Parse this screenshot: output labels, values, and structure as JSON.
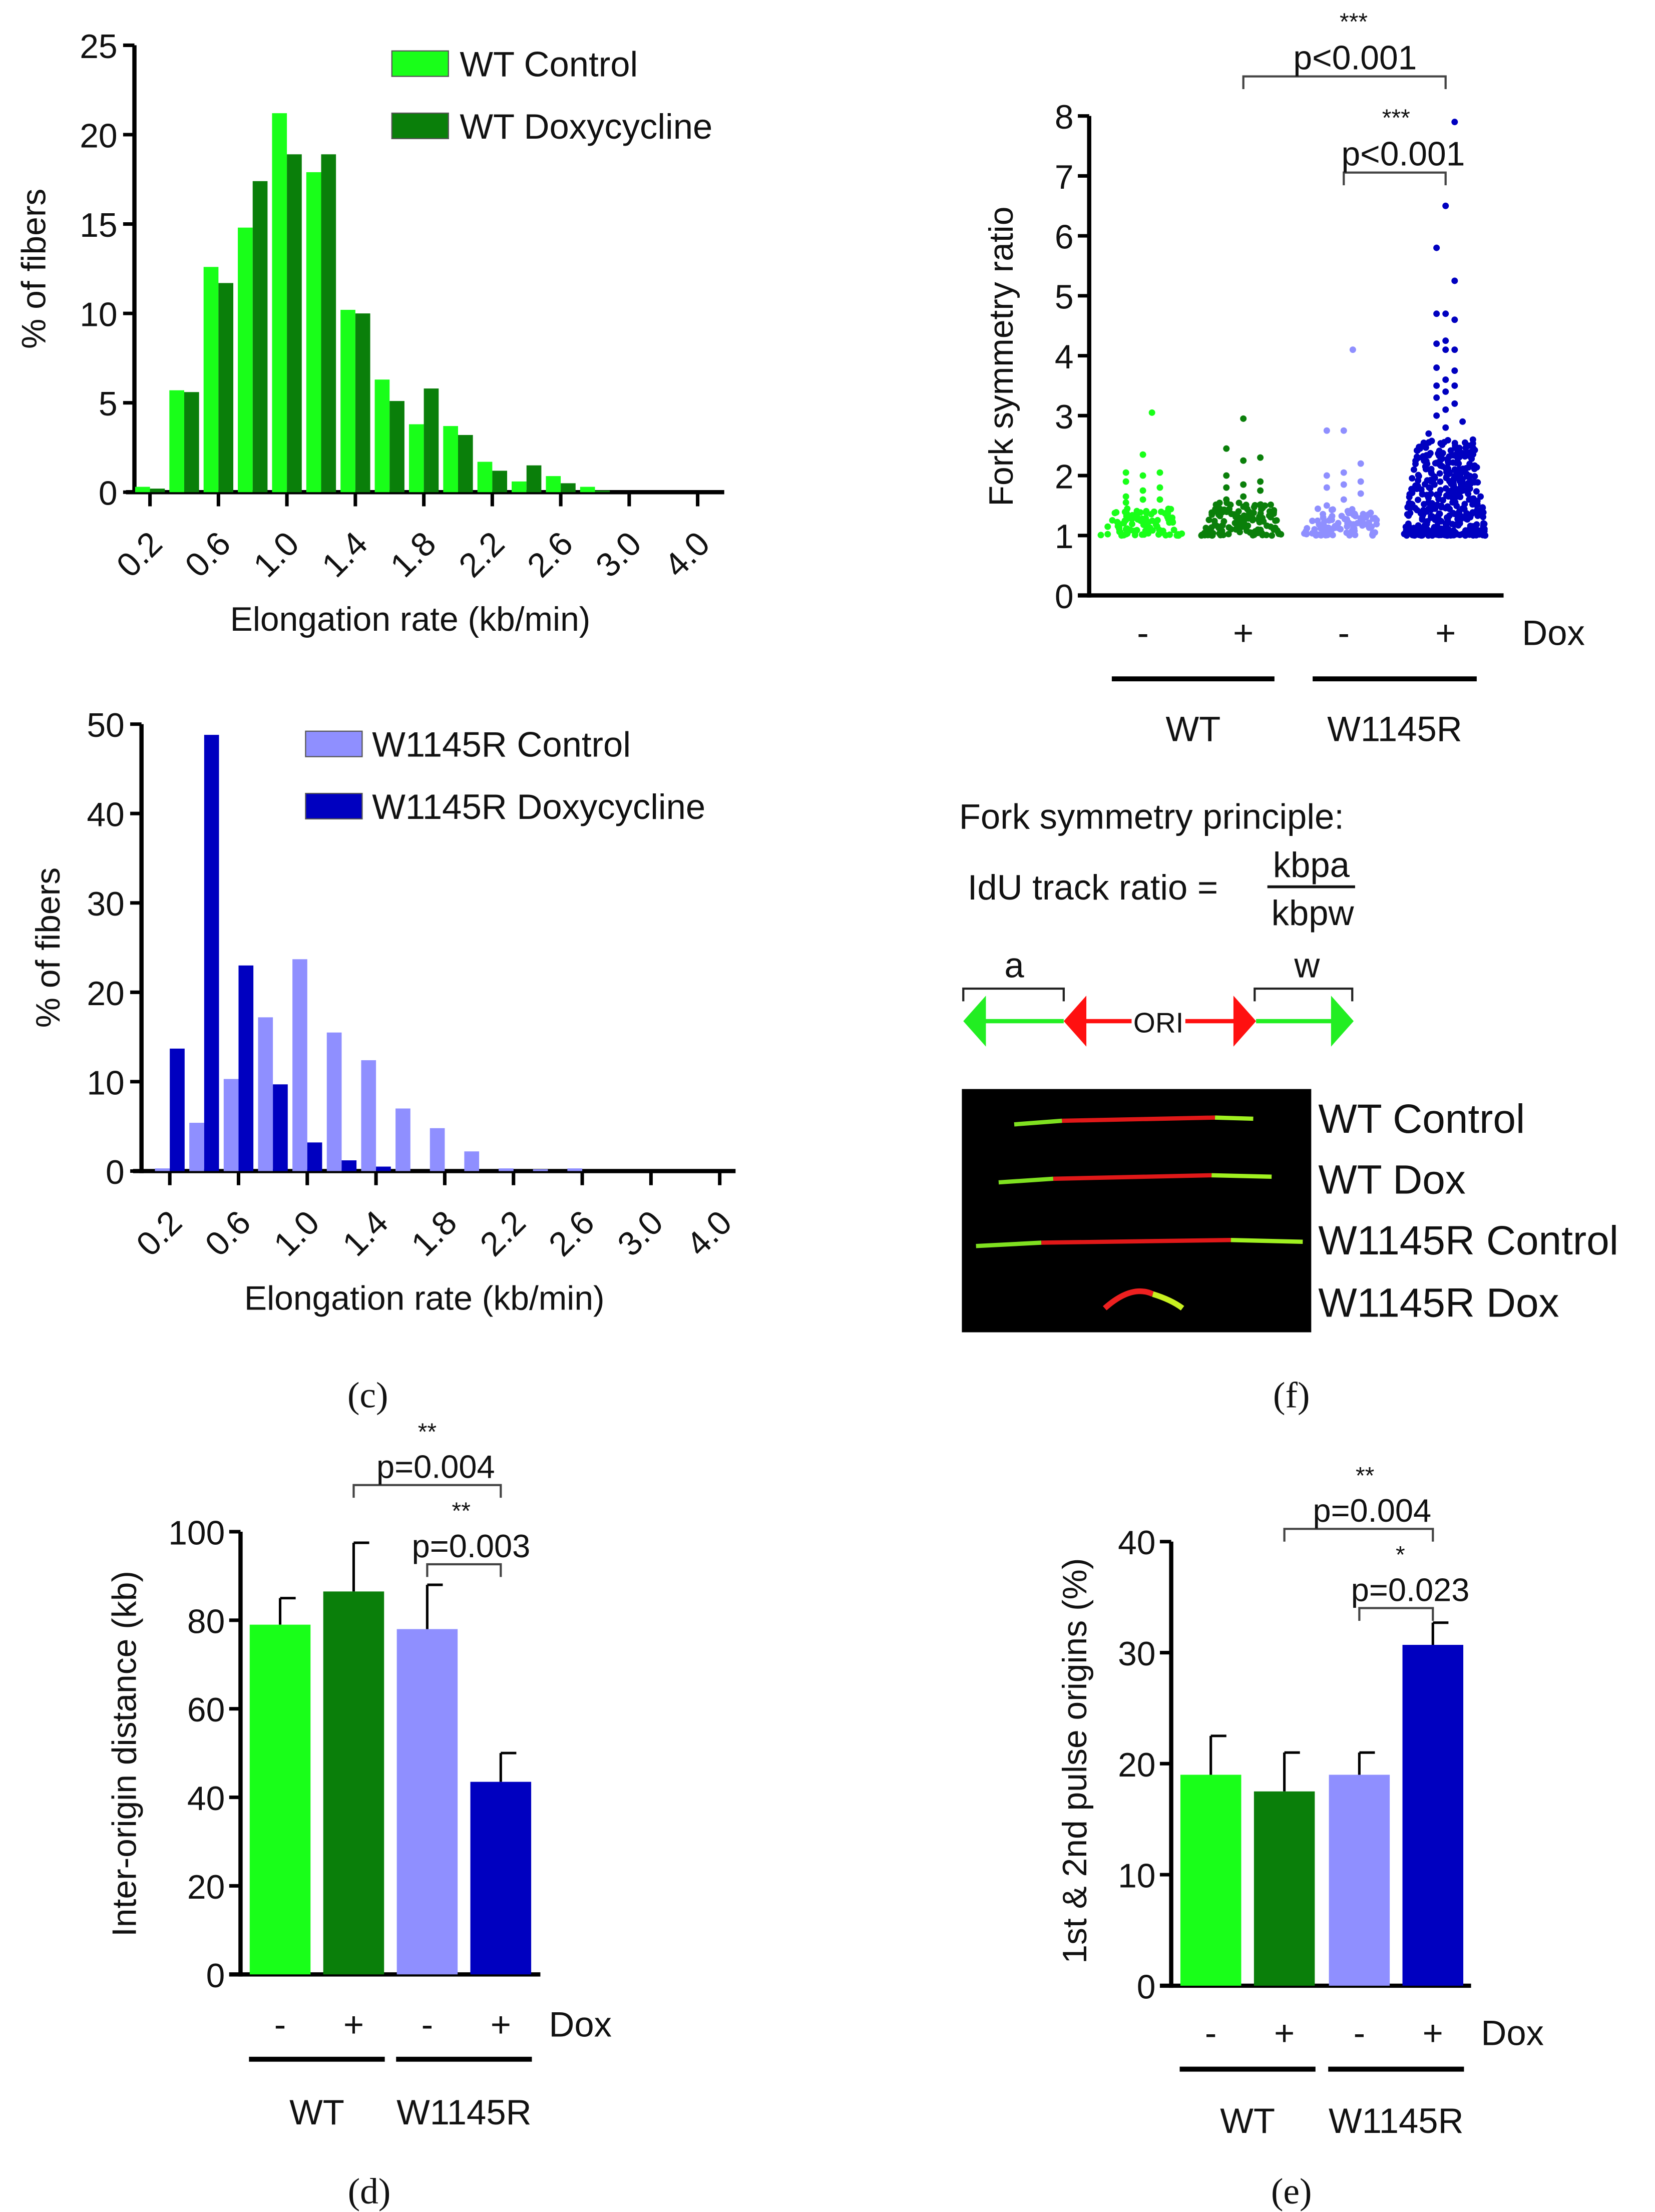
{
  "panels": {
    "c": "(c)",
    "f": "(f)",
    "d": "(d)",
    "e": "(e)"
  },
  "colors": {
    "wt_control": "#19ff19",
    "wt_dox": "#0a7f0a",
    "mut_control": "#8f8fff",
    "mut_dox": "#0000c0"
  },
  "chart_data": [
    {
      "type": "bar",
      "title": "",
      "xlabel": "Elongation rate (kb/min)",
      "ylabel": "% of fibers",
      "ylim": [
        0,
        25
      ],
      "yticks": [
        "0",
        "5",
        "10",
        "15",
        "20",
        "25"
      ],
      "categories": [
        "0.2",
        "0.4",
        "0.6",
        "0.8",
        "1.0",
        "1.2",
        "1.4",
        "1.6",
        "1.8",
        "2.0",
        "2.2",
        "2.4",
        "2.6",
        "2.8",
        "3.0",
        "3.2",
        "4.0"
      ],
      "xtick_labels": [
        "0.2",
        "0.6",
        "1.0",
        "1.4",
        "1.8",
        "2.2",
        "2.6",
        "3.0",
        "4.0"
      ],
      "legend_position": "top-right",
      "series": [
        {
          "name": "WT Control",
          "values": [
            0.3,
            5.7,
            12.6,
            14.8,
            21.2,
            17.9,
            10.2,
            6.3,
            3.8,
            3.7,
            1.7,
            0.6,
            0.9,
            0.3,
            0,
            0,
            0
          ]
        },
        {
          "name": "WT Doxycycline",
          "values": [
            0.2,
            5.6,
            11.7,
            17.4,
            18.9,
            18.9,
            10.0,
            5.1,
            5.8,
            3.2,
            1.2,
            1.5,
            0.5,
            0.1,
            0,
            0,
            0
          ]
        }
      ]
    },
    {
      "type": "bar",
      "title": "",
      "xlabel": "Elongation rate (kb/min)",
      "ylabel": "% of fibers",
      "ylim": [
        0,
        50
      ],
      "yticks": [
        "0",
        "10",
        "20",
        "30",
        "40",
        "50"
      ],
      "categories": [
        "0.2",
        "0.4",
        "0.6",
        "0.8",
        "1.0",
        "1.2",
        "1.4",
        "1.6",
        "1.8",
        "2.0",
        "2.2",
        "2.4",
        "2.6",
        "2.8",
        "3.0",
        "3.2",
        "4.0"
      ],
      "xtick_labels": [
        "0.2",
        "0.6",
        "1.0",
        "1.4",
        "1.8",
        "2.2",
        "2.6",
        "3.0",
        "4.0"
      ],
      "legend_position": "top-right",
      "series": [
        {
          "name": "W1145R Control",
          "values": [
            0.3,
            5.4,
            10.3,
            17.2,
            23.7,
            15.5,
            12.4,
            7.0,
            4.8,
            2.2,
            0.3,
            0.2,
            0.3,
            0,
            0,
            0,
            0
          ]
        },
        {
          "name": "W1145R Doxycycline",
          "values": [
            13.7,
            48.8,
            23.0,
            9.7,
            3.2,
            1.2,
            0.5,
            0,
            0,
            0,
            0,
            0,
            0,
            0,
            0,
            0,
            0
          ]
        }
      ]
    },
    {
      "type": "scatter",
      "ylabel": "Fork symmetry ratio",
      "ylim": [
        0,
        8
      ],
      "yticks": [
        "0",
        "1",
        "2",
        "3",
        "4",
        "5",
        "6",
        "7",
        "8"
      ],
      "dox_label": "Dox",
      "dox_signs": [
        "-",
        "+",
        "-",
        "+"
      ],
      "groups": [
        "WT",
        "W1145R"
      ],
      "series": [
        {
          "name": "WT -",
          "min": 1.0,
          "bulk_max": 1.45,
          "n_bulk": 90,
          "outliers": [
            1.55,
            1.6,
            1.6,
            1.65,
            1.75,
            1.8,
            1.9,
            2.0,
            2.05,
            2.05,
            2.35,
            3.05
          ]
        },
        {
          "name": "WT +",
          "min": 1.0,
          "bulk_max": 1.55,
          "n_bulk": 130,
          "outliers": [
            1.6,
            1.65,
            1.75,
            1.8,
            1.85,
            1.9,
            2.0,
            2.25,
            2.3,
            2.45,
            2.95
          ]
        },
        {
          "name": "W1145R -",
          "min": 1.0,
          "bulk_max": 1.45,
          "n_bulk": 95,
          "outliers": [
            1.5,
            1.6,
            1.7,
            1.8,
            1.85,
            1.9,
            2.0,
            2.05,
            2.2,
            2.75,
            2.75,
            4.1
          ]
        },
        {
          "name": "W1145R +",
          "min": 1.0,
          "bulk_max": 2.6,
          "n_bulk": 420,
          "outliers": [
            2.7,
            2.8,
            2.9,
            3.0,
            3.1,
            3.2,
            3.3,
            3.4,
            3.5,
            3.5,
            3.6,
            3.75,
            3.8,
            4.1,
            4.1,
            4.2,
            4.25,
            4.6,
            4.7,
            4.7,
            5.25,
            5.8,
            6.5,
            7.9
          ]
        }
      ],
      "annotations": [
        {
          "stars": "***",
          "text": "p<0.001",
          "from": "WT +",
          "to": "W1145R +"
        },
        {
          "stars": "***",
          "text": "p<0.001",
          "from": "W1145R -",
          "to": "W1145R +"
        }
      ]
    },
    {
      "type": "bar",
      "ylabel": "Inter-origin distance (kb)",
      "ylim": [
        0,
        100
      ],
      "yticks": [
        "0",
        "20",
        "40",
        "60",
        "80",
        "100"
      ],
      "categories": [
        "WT -",
        "WT +",
        "W1145R -",
        "W1145R +"
      ],
      "values": [
        79,
        86.5,
        78,
        43.5
      ],
      "errors": [
        6,
        11,
        10,
        6.5
      ],
      "dox_label": "Dox",
      "dox_signs": [
        "-",
        "+",
        "-",
        "+"
      ],
      "groups": [
        "WT",
        "W1145R"
      ],
      "annotations": [
        {
          "stars": "**",
          "text": "p=0.004",
          "from": "WT +",
          "to": "W1145R +"
        },
        {
          "stars": "**",
          "text": "p=0.003",
          "from": "W1145R -",
          "to": "W1145R +"
        }
      ]
    },
    {
      "type": "bar",
      "ylabel": "1st & 2nd pulse origins (%)",
      "ylim": [
        0,
        40
      ],
      "yticks": [
        "0",
        "10",
        "20",
        "30",
        "40"
      ],
      "categories": [
        "WT -",
        "WT +",
        "W1145R -",
        "W1145R +"
      ],
      "values": [
        19,
        17.5,
        19,
        30.7
      ],
      "errors": [
        3.5,
        3.5,
        2,
        2
      ],
      "dox_label": "Dox",
      "dox_signs": [
        "-",
        "+",
        "-",
        "+"
      ],
      "groups": [
        "WT",
        "W1145R"
      ],
      "annotations": [
        {
          "stars": "**",
          "text": "p=0.004",
          "from": "WT +",
          "to": "W1145R +"
        },
        {
          "stars": "*",
          "text": "p=0.023",
          "from": "W1145R -",
          "to": "W1145R +"
        }
      ]
    }
  ],
  "diagram": {
    "title": "Fork symmetry principle:",
    "formula_left": "IdU track ratio =",
    "numerator": "kbpa",
    "denominator": "kbpw",
    "label_a": "a",
    "label_w": "w",
    "ori": "ORI"
  },
  "image_labels": [
    "WT Control",
    "WT Dox",
    "W1145R Control",
    "W1145R Dox"
  ]
}
